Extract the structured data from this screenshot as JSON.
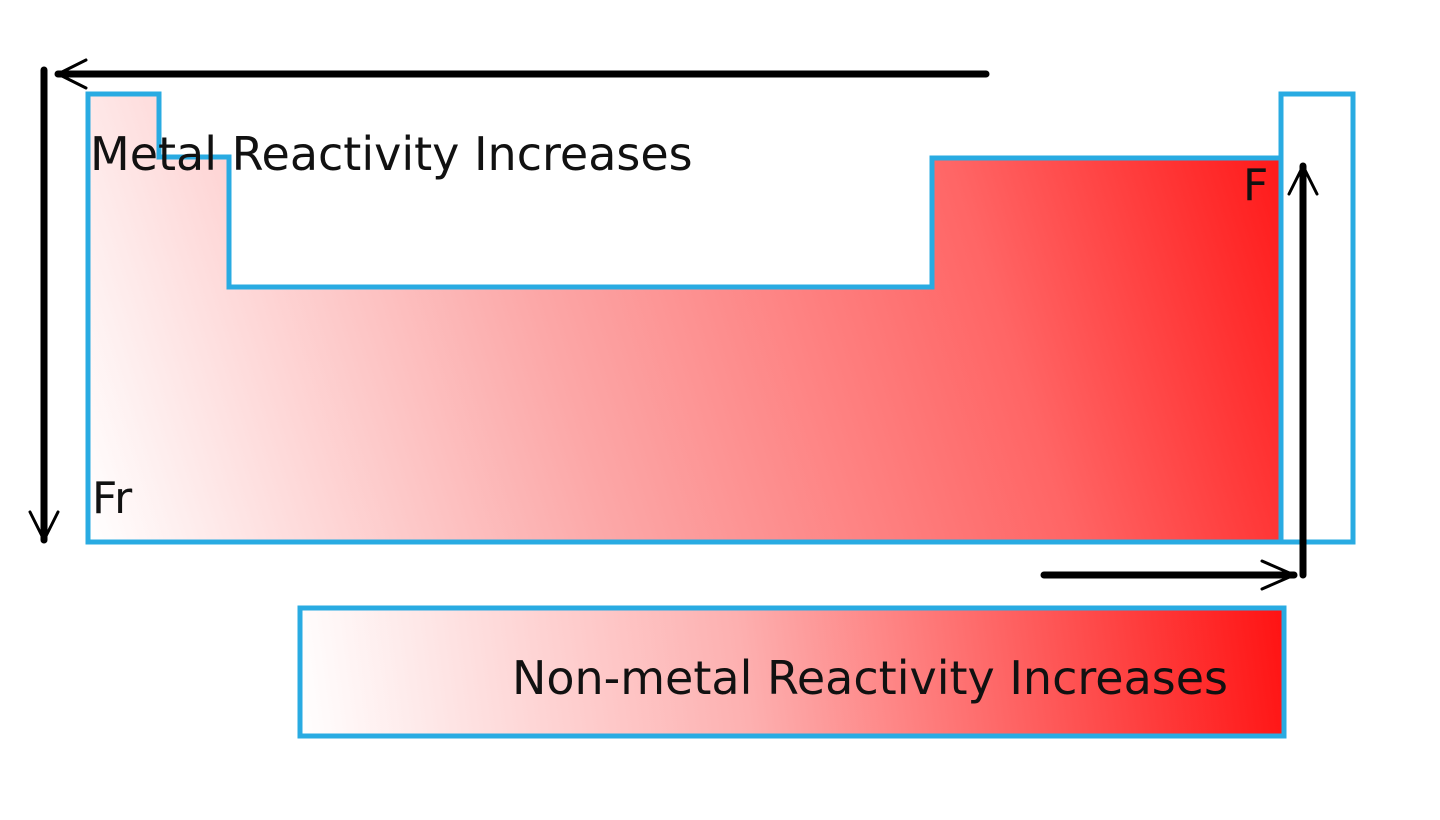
{
  "labels": {
    "metal_reactivity": "Metal Reactivity Increases",
    "nonmetal_reactivity": "Non-metal Reactivity Increases",
    "bottom_left_element": "Fr",
    "top_right_element": "F"
  },
  "colors": {
    "outline": "#29abe2",
    "gradient_light": "#ffffff",
    "gradient_strong": "#ff1a1a",
    "arrow": "#000000",
    "text": "#111111"
  }
}
